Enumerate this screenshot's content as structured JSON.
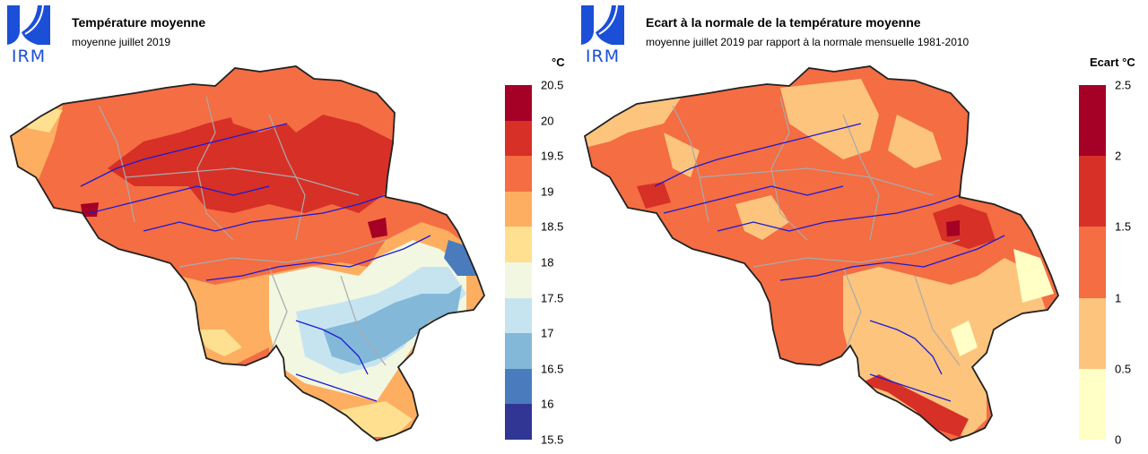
{
  "left_panel": {
    "logo": {
      "text": "IRM",
      "icon": "irm-logo-icon"
    },
    "title": "Température moyenne",
    "subtitle": "moyenne juillet 2019",
    "legend": {
      "unit": "°C",
      "ticks": [
        "20.5",
        "20",
        "19.5",
        "19",
        "18.5",
        "18",
        "17.5",
        "17",
        "16.5",
        "16",
        "15.5"
      ],
      "colors": [
        "#a50026",
        "#d73027",
        "#f46d43",
        "#fdae61",
        "#fee090",
        "#f2f7e2",
        "#c6e4f0",
        "#83b8d8",
        "#4a7cbd",
        "#313695"
      ]
    }
  },
  "right_panel": {
    "logo": {
      "text": "IRM",
      "icon": "irm-logo-icon"
    },
    "title": "Ecart à la normale de la température moyenne",
    "subtitle": "moyenne juillet 2019 par rapport à la normale mensuelle 1981-2010",
    "legend": {
      "unit": "Ecart °C",
      "ticks": [
        "2.5",
        "2",
        "1.5",
        "1",
        "0.5",
        "0"
      ],
      "colors": [
        "#a50026",
        "#d73027",
        "#f46d43",
        "#fdc47d",
        "#ffffc6"
      ]
    }
  }
}
